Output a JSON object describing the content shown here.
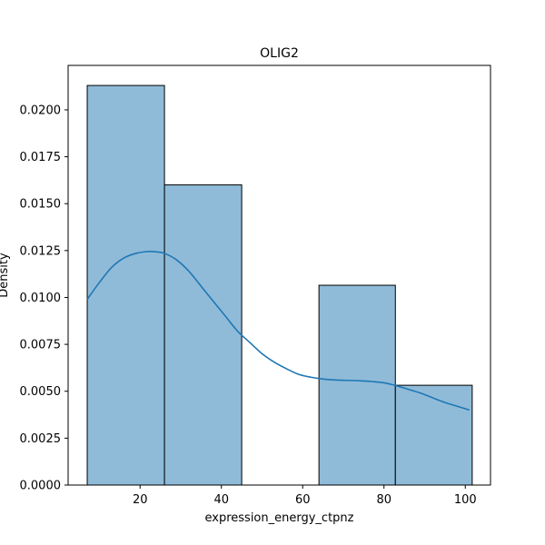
{
  "chart_data": {
    "type": "bar",
    "title": "OLIG2",
    "xlabel": "expression_energy_ctpnz",
    "ylabel": "Density",
    "xlim": [
      2.3,
      106.2
    ],
    "ylim": [
      0,
      0.02237
    ],
    "x_ticks": [
      20,
      40,
      60,
      80,
      100
    ],
    "y_ticks": [
      0.0,
      0.0025,
      0.005,
      0.0075,
      0.01,
      0.0125,
      0.015,
      0.0175,
      0.02
    ],
    "y_tick_labels": [
      "0.0000",
      "0.0025",
      "0.0050",
      "0.0075",
      "0.0100",
      "0.0125",
      "0.0150",
      "0.0175",
      "0.0200"
    ],
    "bins": [
      {
        "x0": 7.0,
        "x1": 26.0,
        "density": 0.0213
      },
      {
        "x0": 26.0,
        "x1": 45.0,
        "density": 0.016
      },
      {
        "x0": 45.0,
        "x1": 64.0,
        "density": 0.0
      },
      {
        "x0": 64.0,
        "x1": 82.8,
        "density": 0.01065
      },
      {
        "x0": 82.8,
        "x1": 101.7,
        "density": 0.00532
      }
    ],
    "kde": {
      "x": [
        7,
        10,
        13,
        16,
        19,
        22,
        24,
        26,
        29,
        32,
        35,
        38,
        41,
        44,
        47,
        50,
        53,
        56,
        59,
        62,
        65,
        68,
        71,
        74,
        77,
        80,
        83,
        86,
        89,
        92,
        95,
        98,
        101
      ],
      "y": [
        0.0099,
        0.0108,
        0.0116,
        0.0121,
        0.01235,
        0.01245,
        0.01243,
        0.01235,
        0.012,
        0.0114,
        0.0106,
        0.0098,
        0.009,
        0.0082,
        0.0076,
        0.007,
        0.00655,
        0.0062,
        0.0059,
        0.00575,
        0.00565,
        0.0056,
        0.00558,
        0.00556,
        0.00552,
        0.00545,
        0.0053,
        0.0051,
        0.0049,
        0.00465,
        0.0044,
        0.0042,
        0.004
      ]
    },
    "bar_fill": "#8fbbd9",
    "bar_edge": "#000000",
    "kde_color": "#1f77b4",
    "grid": false,
    "legend": "none"
  }
}
